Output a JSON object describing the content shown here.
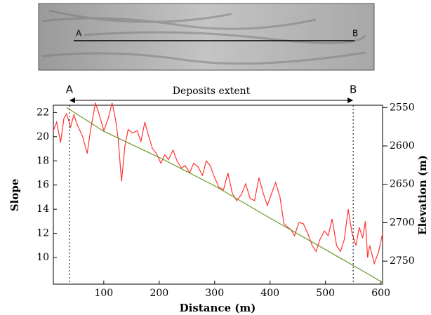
{
  "image": {
    "labels": [
      "A",
      "B"
    ]
  },
  "chart_data": {
    "type": "line",
    "x_label": "Distance (m)",
    "y_label": "Slope",
    "y2_label": "Elevation (m)",
    "xlim": [
      9,
      603
    ],
    "ylim": [
      7.8,
      22.6
    ],
    "y2lim": [
      2780,
      2547
    ],
    "xticks": [
      100,
      200,
      300,
      400,
      500,
      600
    ],
    "yticks": [
      10,
      12,
      14,
      16,
      18,
      20,
      22
    ],
    "y2ticks": [
      2550,
      2600,
      2650,
      2700,
      2750
    ],
    "annotations": [
      {
        "label": "A",
        "x": 38
      },
      {
        "label": "B",
        "x": 550
      }
    ],
    "span_label": "Deposits extent",
    "series": [
      {
        "color": "#ff3333",
        "x": [
          9,
          15,
          22,
          28,
          33,
          40,
          46,
          52,
          62,
          70,
          76,
          85,
          92,
          100,
          108,
          115,
          121,
          126,
          132,
          138,
          144,
          152,
          160,
          167,
          174,
          180,
          188,
          195,
          203,
          210,
          217,
          225,
          232,
          240,
          247,
          255,
          262,
          270,
          278,
          285,
          292,
          300,
          308,
          316,
          324,
          332,
          340,
          348,
          356,
          364,
          372,
          380,
          388,
          395,
          402,
          410,
          418,
          425,
          432,
          438,
          444,
          452,
          460,
          468,
          476,
          483,
          490,
          498,
          505,
          512,
          520,
          527,
          534,
          541,
          548,
          555,
          561,
          567,
          572,
          576,
          580,
          588,
          596,
          603
        ],
        "values": [
          20.5,
          21.2,
          19.5,
          21.5,
          21.9,
          20.8,
          21.8,
          21,
          20,
          18.6,
          20.5,
          22.8,
          21.8,
          20.5,
          21.5,
          22.8,
          21.5,
          19.8,
          16.3,
          19.2,
          20.6,
          20.3,
          20.5,
          19.6,
          21.2,
          20.2,
          19,
          18.6,
          17.8,
          18.5,
          18.1,
          18.9,
          18,
          17.4,
          17.6,
          17,
          17.8,
          17.5,
          16.8,
          18,
          17.6,
          16.6,
          15.8,
          15.6,
          17,
          15.3,
          14.7,
          15.2,
          16.1,
          14.9,
          14.7,
          16.6,
          15.3,
          14.3,
          15.2,
          16.2,
          15,
          12.8,
          12.5,
          12.3,
          11.8,
          12.9,
          12.8,
          12,
          11,
          10.5,
          11.5,
          12.2,
          11.8,
          13.2,
          11,
          10.5,
          11.5,
          14,
          12,
          11,
          12.5,
          11.6,
          13,
          10,
          11,
          9.5,
          10.5,
          12
        ]
      },
      {
        "color": "#6a9a2a",
        "axis": "y2",
        "x": [
          33,
          100,
          200,
          300,
          400,
          500,
          580,
          603
        ],
        "values": [
          2550,
          2581,
          2615,
          2652,
          2694,
          2735,
          2768,
          2778
        ]
      }
    ]
  }
}
